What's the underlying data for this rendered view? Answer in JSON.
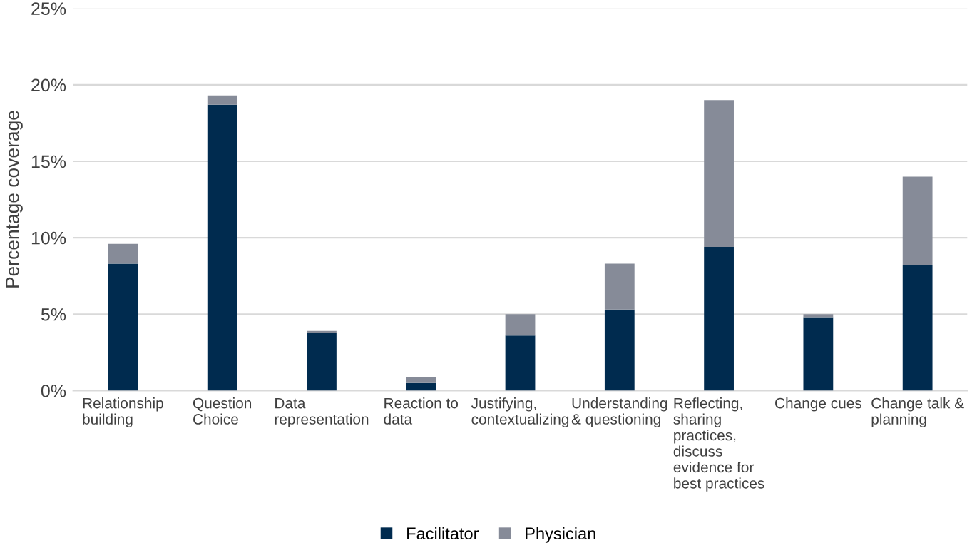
{
  "chart_data": {
    "type": "bar",
    "stacked": true,
    "ylabel": "Percentage coverage",
    "categories": [
      "Relationship building",
      "Question Choice",
      "Data representation",
      "Reaction to data",
      "Justifying, contextualizing",
      "Understanding & questioning",
      "Reflecting, sharing practices, discuss evidence for best practices",
      "Change cues",
      "Change talk & planning"
    ],
    "series": [
      {
        "name": "Facilitator",
        "color": "#002b4f",
        "values": [
          8.3,
          18.7,
          3.8,
          0.5,
          3.6,
          5.3,
          9.4,
          4.8,
          8.2
        ]
      },
      {
        "name": "Physician",
        "color": "#868b98",
        "values": [
          1.3,
          0.6,
          0.1,
          0.4,
          1.4,
          3.0,
          9.6,
          0.2,
          5.8
        ]
      }
    ],
    "ylim": [
      0,
      25
    ],
    "yticks": [
      {
        "value": 0,
        "label": "0%"
      },
      {
        "value": 5,
        "label": "5%"
      },
      {
        "value": 10,
        "label": "10%"
      },
      {
        "value": 15,
        "label": "15%"
      },
      {
        "value": 20,
        "label": "20%"
      },
      {
        "value": 25,
        "label": "25%"
      }
    ],
    "grid": "y",
    "legend": "bottom"
  }
}
